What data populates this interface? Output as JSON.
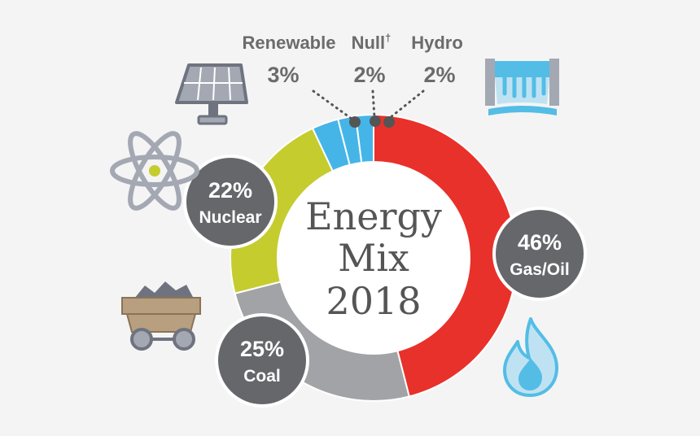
{
  "chart_data": {
    "type": "pie",
    "title_lines": [
      "Energy",
      "Mix",
      "2018"
    ],
    "slices": [
      {
        "key": "gas",
        "label": "Gas/Oil",
        "value": 46,
        "value_text": "46%",
        "color": "#e8312a"
      },
      {
        "key": "coal",
        "label": "Coal",
        "value": 25,
        "value_text": "25%",
        "color": "#a2a3a6"
      },
      {
        "key": "nuclear",
        "label": "Nuclear",
        "value": 22,
        "value_text": "22%",
        "color": "#c5cc2e"
      },
      {
        "key": "renewable",
        "label": "Renewable",
        "value": 3,
        "value_text": "3%",
        "color": "#45b5e8"
      },
      {
        "key": "null",
        "label": "Null",
        "label_suffix": "†",
        "value": 2,
        "value_text": "2%",
        "color": "#45b5e8"
      },
      {
        "key": "hydro",
        "label": "Hydro",
        "value": 2,
        "value_text": "2%",
        "color": "#45b5e8"
      }
    ]
  },
  "colors": {
    "bubble": "#66676b",
    "icon_fill": "#a3a8b3",
    "icon_dark": "#6f7380",
    "water": "#bfe2f2",
    "water_dark": "#53bde6",
    "coal_cart": "#b79f7f"
  },
  "icons": [
    "solar-panel-icon",
    "atom-icon",
    "coal-cart-icon",
    "dam-icon",
    "flame-icon"
  ]
}
